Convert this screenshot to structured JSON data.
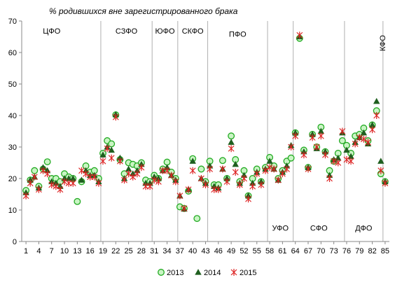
{
  "chart_data": {
    "type": "scatter",
    "title": "% родившихся вне зарегистрированного брака",
    "xlabel": "",
    "ylabel": "",
    "xlim": [
      0,
      86
    ],
    "ylim": [
      0,
      70
    ],
    "x_ticks": [
      1,
      4,
      7,
      10,
      13,
      16,
      19,
      22,
      25,
      28,
      31,
      34,
      37,
      40,
      43,
      46,
      49,
      52,
      55,
      58,
      61,
      64,
      67,
      70,
      73,
      76,
      79,
      82,
      85
    ],
    "y_ticks": [
      0,
      10,
      20,
      30,
      40,
      50,
      60,
      70
    ],
    "grid": "vertical separators between federal districts",
    "legend_position": "bottom",
    "colors": {
      "s2013": "#22aa22",
      "s2014": "#1f5f1f",
      "s2015": "#dd2222",
      "separator": "#b0b0b0",
      "axis": "#888888"
    },
    "separators": [
      18.5,
      30.5,
      36.5,
      43.5,
      57.5,
      63.5,
      75.5,
      84.5
    ],
    "regions": [
      {
        "label": "ЦФО",
        "x": 7,
        "y": 66,
        "vertical": false
      },
      {
        "label": "СЗФО",
        "x": 24.5,
        "y": 66,
        "vertical": false
      },
      {
        "label": "ЮФО",
        "x": 33.5,
        "y": 66,
        "vertical": false
      },
      {
        "label": "СКФО",
        "x": 40,
        "y": 66,
        "vertical": false
      },
      {
        "label": "ПФО",
        "x": 50.5,
        "y": 65,
        "vertical": false
      },
      {
        "label": "УФО",
        "x": 60.5,
        "y": 3.5,
        "vertical": false
      },
      {
        "label": "СФО",
        "x": 69.5,
        "y": 3.5,
        "vertical": false
      },
      {
        "label": "ДФО",
        "x": 80,
        "y": 3.5,
        "vertical": false
      },
      {
        "label": "КФО",
        "x": 85,
        "y": 63,
        "vertical": true
      }
    ],
    "series": [
      {
        "name": "2013",
        "marker": "circle",
        "points": [
          [
            1,
            16.2
          ],
          [
            2,
            19.5
          ],
          [
            3,
            22.5
          ],
          [
            4,
            17.5
          ],
          [
            5,
            23
          ],
          [
            6,
            25.3
          ],
          [
            7,
            20
          ],
          [
            8,
            20
          ],
          [
            9,
            19
          ],
          [
            10,
            21.5
          ],
          [
            11,
            20.5
          ],
          [
            12,
            20
          ],
          [
            13,
            12.7
          ],
          [
            14,
            19
          ],
          [
            15,
            24
          ],
          [
            16,
            22
          ],
          [
            17,
            22.5
          ],
          [
            18,
            20
          ],
          [
            19,
            28
          ],
          [
            20,
            32
          ],
          [
            21,
            31
          ],
          [
            22,
            40.2
          ],
          [
            23,
            26
          ],
          [
            24,
            21.5
          ],
          [
            25,
            25
          ],
          [
            26,
            24.5
          ],
          [
            27,
            24
          ],
          [
            28,
            25
          ],
          [
            29,
            19.5
          ],
          [
            30,
            19
          ],
          [
            31,
            21
          ],
          [
            32,
            20
          ],
          [
            33,
            23
          ],
          [
            34,
            25.2
          ],
          [
            35,
            22
          ],
          [
            36,
            20
          ],
          [
            37,
            11
          ],
          [
            38,
            10.5
          ],
          [
            39,
            16
          ],
          [
            40,
            26.3
          ],
          [
            41,
            7.3
          ],
          [
            42,
            23
          ],
          [
            43,
            19
          ],
          [
            44,
            25.5
          ],
          [
            45,
            18
          ],
          [
            46,
            18
          ],
          [
            47,
            25.7
          ],
          [
            48,
            20
          ],
          [
            49,
            33.5
          ],
          [
            50,
            26
          ],
          [
            51,
            19
          ],
          [
            52,
            22.5
          ],
          [
            53,
            14.5
          ],
          [
            54,
            20
          ],
          [
            55,
            23
          ],
          [
            56,
            19
          ],
          [
            57,
            23.5
          ],
          [
            58,
            26.7
          ],
          [
            59,
            24
          ],
          [
            60,
            20
          ],
          [
            61,
            22.5
          ],
          [
            62,
            25.5
          ],
          [
            63,
            26.5
          ],
          [
            64,
            34.5
          ],
          [
            65,
            64.5
          ],
          [
            66,
            29
          ],
          [
            67,
            23.5
          ],
          [
            68,
            34
          ],
          [
            69,
            30
          ],
          [
            70,
            36.3
          ],
          [
            71,
            28.5
          ],
          [
            72,
            22.5
          ],
          [
            73,
            25.5
          ],
          [
            74,
            28
          ],
          [
            75,
            32
          ],
          [
            76,
            30.5
          ],
          [
            77,
            28
          ],
          [
            78,
            33.5
          ],
          [
            79,
            34
          ],
          [
            80,
            36
          ],
          [
            81,
            32
          ],
          [
            82,
            37
          ],
          [
            83,
            41.5
          ],
          [
            84,
            21.5
          ],
          [
            85,
            19
          ]
        ]
      },
      {
        "name": "2014",
        "marker": "triangle",
        "points": [
          [
            1,
            15.5
          ],
          [
            2,
            19.5
          ],
          [
            3,
            20.5
          ],
          [
            4,
            17
          ],
          [
            5,
            23.5
          ],
          [
            6,
            22.5
          ],
          [
            7,
            19
          ],
          [
            8,
            18.5
          ],
          [
            9,
            17.5
          ],
          [
            10,
            20
          ],
          [
            11,
            20
          ],
          [
            12,
            20
          ],
          [
            14,
            19.5
          ],
          [
            15,
            22.5
          ],
          [
            16,
            21
          ],
          [
            17,
            21
          ],
          [
            18,
            19
          ],
          [
            19,
            27.5
          ],
          [
            20,
            30
          ],
          [
            21,
            29
          ],
          [
            22,
            40.3
          ],
          [
            23,
            26.5
          ],
          [
            24,
            20
          ],
          [
            25,
            23
          ],
          [
            26,
            21.5
          ],
          [
            27,
            22.5
          ],
          [
            28,
            24.5
          ],
          [
            29,
            18.5
          ],
          [
            30,
            18.5
          ],
          [
            31,
            20.5
          ],
          [
            32,
            20
          ],
          [
            33,
            22.5
          ],
          [
            34,
            23.5
          ],
          [
            35,
            21
          ],
          [
            36,
            19.5
          ],
          [
            37,
            14.5
          ],
          [
            38,
            10.3
          ],
          [
            39,
            16.5
          ],
          [
            40,
            25.5
          ],
          [
            42,
            20
          ],
          [
            43,
            18.5
          ],
          [
            44,
            24
          ],
          [
            45,
            17.5
          ],
          [
            46,
            17
          ],
          [
            47,
            23
          ],
          [
            48,
            20
          ],
          [
            49,
            31.5
          ],
          [
            50,
            24.5
          ],
          [
            51,
            18.5
          ],
          [
            52,
            21
          ],
          [
            53,
            14.5
          ],
          [
            54,
            18.5
          ],
          [
            55,
            22
          ],
          [
            56,
            19
          ],
          [
            57,
            23
          ],
          [
            58,
            25.5
          ],
          [
            59,
            23
          ],
          [
            60,
            19.5
          ],
          [
            61,
            22
          ],
          [
            62,
            24
          ],
          [
            63,
            30.5
          ],
          [
            64,
            34.5
          ],
          [
            65,
            65
          ],
          [
            66,
            28.5
          ],
          [
            67,
            23.5
          ],
          [
            68,
            34
          ],
          [
            69,
            29.5
          ],
          [
            70,
            35
          ],
          [
            71,
            28.5
          ],
          [
            72,
            21
          ],
          [
            73,
            26
          ],
          [
            74,
            26.5
          ],
          [
            75,
            34.5
          ],
          [
            76,
            29
          ],
          [
            77,
            27
          ],
          [
            78,
            31.5
          ],
          [
            79,
            33
          ],
          [
            80,
            34.5
          ],
          [
            81,
            31
          ],
          [
            82,
            37
          ],
          [
            83,
            44.5
          ],
          [
            84,
            25.5
          ],
          [
            85,
            19
          ]
        ]
      },
      {
        "name": "2015",
        "marker": "asterisk",
        "points": [
          [
            1,
            14.5
          ],
          [
            2,
            18.5
          ],
          [
            3,
            20.5
          ],
          [
            4,
            16.5
          ],
          [
            5,
            22.5
          ],
          [
            6,
            21.5
          ],
          [
            7,
            18
          ],
          [
            8,
            17.5
          ],
          [
            9,
            16.5
          ],
          [
            10,
            19
          ],
          [
            11,
            18.5
          ],
          [
            12,
            18.5
          ],
          [
            14,
            22.5
          ],
          [
            15,
            21.5
          ],
          [
            16,
            20.5
          ],
          [
            17,
            20.5
          ],
          [
            18,
            18.5
          ],
          [
            19,
            25.5
          ],
          [
            20,
            29.5
          ],
          [
            21,
            26.5
          ],
          [
            22,
            39.5
          ],
          [
            23,
            25.5
          ],
          [
            24,
            19.5
          ],
          [
            25,
            21.5
          ],
          [
            26,
            20.5
          ],
          [
            27,
            21.5
          ],
          [
            28,
            23.5
          ],
          [
            29,
            17.5
          ],
          [
            30,
            17.5
          ],
          [
            31,
            19.5
          ],
          [
            32,
            19
          ],
          [
            33,
            22.5
          ],
          [
            34,
            22.5
          ],
          [
            35,
            21
          ],
          [
            36,
            19
          ],
          [
            37,
            14.5
          ],
          [
            38,
            10.5
          ],
          [
            39,
            16.5
          ],
          [
            40,
            22.5
          ],
          [
            42,
            20
          ],
          [
            43,
            18
          ],
          [
            44,
            23
          ],
          [
            45,
            16.5
          ],
          [
            46,
            16.5
          ],
          [
            47,
            23
          ],
          [
            48,
            19
          ],
          [
            49,
            29.5
          ],
          [
            50,
            22
          ],
          [
            51,
            18
          ],
          [
            52,
            20
          ],
          [
            53,
            13.5
          ],
          [
            54,
            17.5
          ],
          [
            55,
            21.5
          ],
          [
            56,
            18
          ],
          [
            57,
            22.5
          ],
          [
            58,
            23.5
          ],
          [
            59,
            23
          ],
          [
            60,
            19.5
          ],
          [
            61,
            21.5
          ],
          [
            62,
            23
          ],
          [
            63,
            30
          ],
          [
            64,
            33.5
          ],
          [
            65,
            65.5
          ],
          [
            66,
            27.5
          ],
          [
            67,
            23
          ],
          [
            68,
            33
          ],
          [
            69,
            30
          ],
          [
            70,
            33.5
          ],
          [
            71,
            27.5
          ],
          [
            72,
            20
          ],
          [
            73,
            25.5
          ],
          [
            74,
            25
          ],
          [
            75,
            35
          ],
          [
            76,
            26
          ],
          [
            77,
            25.5
          ],
          [
            78,
            31
          ],
          [
            79,
            33
          ],
          [
            80,
            32.5
          ],
          [
            81,
            31.5
          ],
          [
            82,
            35.5
          ],
          [
            83,
            40
          ],
          [
            84,
            22.5
          ],
          [
            85,
            18.5
          ]
        ]
      }
    ]
  }
}
